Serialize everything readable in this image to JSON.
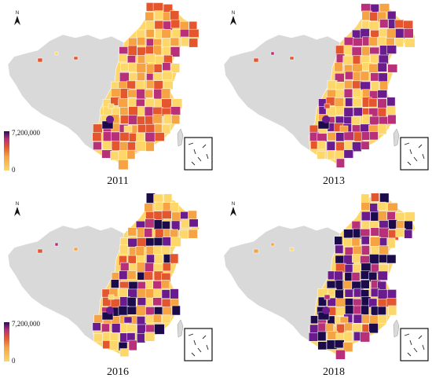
{
  "panels": [
    {
      "year": "2011",
      "intensity": 0.2
    },
    {
      "year": "2013",
      "intensity": 0.35
    },
    {
      "year": "2016",
      "intensity": 0.55
    },
    {
      "year": "2018",
      "intensity": 0.8
    }
  ],
  "legend": {
    "max_label": "7,200,000",
    "min_label": "0"
  },
  "north_arrow": {
    "label": "N",
    "icon": "north-arrow-icon"
  },
  "colors": {
    "no_data": "#d9d9d9",
    "low": "#fdd76a",
    "mid_low": "#f6a344",
    "mid": "#e4572e",
    "mid_high": "#b8307a",
    "high": "#6a1c8e",
    "max": "#1c0b4a",
    "border": "#ffffff"
  }
}
